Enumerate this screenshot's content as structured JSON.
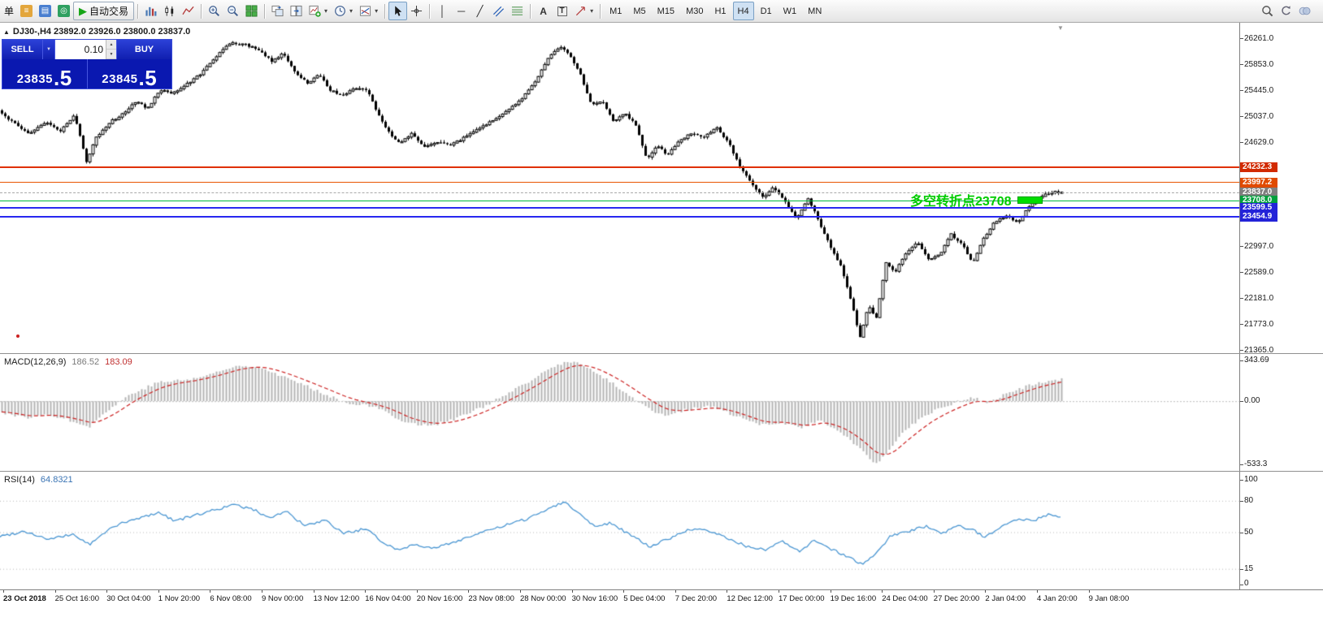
{
  "glyphs": {
    "dropdown": "▼",
    "spin_up": "▲",
    "spin_down": "▼",
    "symbol_marker": "▲",
    "shift_marker": "▼"
  },
  "toolbar": {
    "items": [
      {
        "type": "text",
        "name": "new-order-label",
        "text": "单"
      },
      {
        "type": "icon",
        "name": "metaeditor-icon",
        "box": "#e3a63c",
        "glyph": "≡"
      },
      {
        "type": "icon",
        "name": "data-window-icon",
        "box": "#4a7fd0",
        "glyph": "▤"
      },
      {
        "type": "icon",
        "name": "strategy-tester-icon",
        "box": "#2fa060",
        "glyph": "◎"
      },
      {
        "type": "icon",
        "name": "autotrading-button",
        "glyph": "▶",
        "glyph_color": "#17a517",
        "label": "自动交易",
        "framed": true
      },
      {
        "type": "sep"
      },
      {
        "type": "icon",
        "name": "bar-chart-icon",
        "svg": "bars"
      },
      {
        "type": "icon",
        "name": "candlestick-icon",
        "svg": "candles"
      },
      {
        "type": "icon",
        "name": "line-chart-icon",
        "svg": "linechart"
      },
      {
        "type": "sep"
      },
      {
        "type": "icon",
        "name": "zoom-in-icon",
        "svg": "zoomin"
      },
      {
        "type": "icon",
        "name": "zoom-out-icon",
        "svg": "zoomout"
      },
      {
        "type": "icon",
        "name": "tile-windows-icon",
        "svg": "tile"
      },
      {
        "type": "sep"
      },
      {
        "type": "icon",
        "name": "cascade-windows-icon",
        "svg": "cascade"
      },
      {
        "type": "icon",
        "name": "arrange-windows-icon",
        "svg": "cascade2"
      },
      {
        "type": "icon",
        "name": "new-chart-button",
        "svg": "newchart",
        "dropdown": true
      },
      {
        "type": "icon",
        "name": "profiles-button",
        "svg": "clock",
        "dropdown": true
      },
      {
        "type": "icon",
        "name": "templates-button",
        "svg": "template",
        "dropdown": true
      },
      {
        "type": "sep"
      },
      {
        "type": "icon",
        "name": "cursor-tool",
        "svg": "cursor",
        "pressed": true
      },
      {
        "type": "icon",
        "name": "crosshair-tool",
        "svg": "crosshair"
      },
      {
        "type": "sep"
      },
      {
        "type": "icon",
        "name": "vertical-line-tool",
        "glyph": "│"
      },
      {
        "type": "icon",
        "name": "horizontal-line-tool",
        "glyph": "─"
      },
      {
        "type": "icon",
        "name": "trendline-tool",
        "glyph": "╱"
      },
      {
        "type": "icon",
        "name": "channel-tool",
        "svg": "channel"
      },
      {
        "type": "icon",
        "name": "fibonacci-tool",
        "svg": "fib"
      },
      {
        "type": "sep"
      },
      {
        "type": "icon",
        "name": "text-tool",
        "glyph": "A",
        "bold": true
      },
      {
        "type": "icon",
        "name": "text-label-tool",
        "glyph": "T",
        "boxed": true
      },
      {
        "type": "icon",
        "name": "arrows-tool",
        "svg": "shapes",
        "dropdown": true
      },
      {
        "type": "sep"
      }
    ],
    "timeframes": {
      "labels": [
        "M1",
        "M5",
        "M15",
        "M30",
        "H1",
        "H4",
        "D1",
        "W1",
        "MN"
      ],
      "active": "H4"
    },
    "right_items": [
      {
        "name": "search-icon",
        "svg": "search"
      },
      {
        "name": "sync-icon",
        "svg": "sync"
      },
      {
        "name": "community-icon",
        "svg": "circles"
      }
    ]
  },
  "chart": {
    "title": "DJ30-,H4  23892.0 23926.0 23800.0 23837.0",
    "trade_panel": {
      "sell_label": "SELL",
      "buy_label": "BUY",
      "volume": "0.10",
      "sell_price": "23835.5",
      "buy_price": "23845.5",
      "sell_price_main": "23835",
      "sell_price_pip": ".5",
      "buy_price_main": "23845",
      "buy_price_pip": ".5"
    },
    "annotation": {
      "text": "多空转折点23708",
      "color": "#00cc00",
      "marker_color": "#00dd00"
    },
    "y_axis": {
      "price_min": 21365.0,
      "price_max": 26261.0,
      "ticks": [
        "26261.0",
        "25853.0",
        "25445.0",
        "25037.0",
        "24629.0",
        "22997.0",
        "22589.0",
        "22181.0",
        "21773.0",
        "21365.0"
      ]
    },
    "levels": [
      {
        "label": "24232.3",
        "price": 24232.3,
        "line_color": "#e03000",
        "tag_color": "#d22a00",
        "thickness": 2
      },
      {
        "label": "23997.2",
        "price": 23997.2,
        "line_color": "#e85500",
        "tag_color": "#e04a00",
        "thickness": 1
      },
      {
        "label": "23837.0",
        "price": 23837.0,
        "line_color": "#aaaaaa",
        "tag_color": "#7f7f7f",
        "thickness": 1,
        "style": "dashed",
        "role": "current-price"
      },
      {
        "label": "23708.0",
        "price": 23708.0,
        "line_color": "#00b43c",
        "tag_color": "#00a03c",
        "thickness": 1
      },
      {
        "label": "23599.5",
        "price": 23599.5,
        "line_color": "#2828f0",
        "tag_color": "#2323d8",
        "thickness": 2
      },
      {
        "label": "23454.9",
        "price": 23454.9,
        "line_color": "#2828f0",
        "tag_color": "#2323d8",
        "thickness": 2
      }
    ]
  },
  "indicators": {
    "macd": {
      "name": "MACD(12,26,9)",
      "value_main": "186.52",
      "value_signal": "183.09",
      "axis_labels": [
        "343.69",
        "0.00",
        "-533.3"
      ],
      "histogram_color": "#b4b4b4",
      "signal_color": "#cc2222"
    },
    "rsi": {
      "name": "RSI(14)",
      "value": "64.8321",
      "axis_labels": [
        "100",
        "80",
        "50",
        "15",
        "0"
      ],
      "line_color": "#4a96d2",
      "levels": [
        80,
        50,
        15
      ]
    }
  },
  "time_axis": {
    "labels": [
      "23 Oct 2018",
      "25 Oct 16:00",
      "30 Oct 04:00",
      "1 Nov 20:00",
      "6 Nov 08:00",
      "9 Nov 00:00",
      "13 Nov 12:00",
      "16 Nov 04:00",
      "20 Nov 16:00",
      "23 Nov 08:00",
      "28 Nov 00:00",
      "30 Nov 16:00",
      "5 Dec 04:00",
      "7 Dec 20:00",
      "12 Dec 12:00",
      "17 Dec 00:00",
      "19 Dec 16:00",
      "24 Dec 04:00",
      "27 Dec 20:00",
      "2 Jan 04:00",
      "4 Jan 20:00",
      "9 Jan 08:00"
    ]
  },
  "chart_data": [
    {
      "type": "candlestick",
      "symbol": "DJ30-",
      "period": "H4",
      "open": 23892.0,
      "high": 23926.0,
      "low": 23800.0,
      "close": 23837.0,
      "price_min": 21365.0,
      "price_max": 26261.0,
      "price_path": [
        [
          0,
          25150
        ],
        [
          15,
          24980
        ],
        [
          40,
          24760
        ],
        [
          60,
          24950
        ],
        [
          78,
          24800
        ],
        [
          95,
          25050
        ],
        [
          110,
          24330
        ],
        [
          122,
          24700
        ],
        [
          140,
          24950
        ],
        [
          158,
          25100
        ],
        [
          172,
          25290
        ],
        [
          185,
          25150
        ],
        [
          200,
          25450
        ],
        [
          215,
          25400
        ],
        [
          232,
          25520
        ],
        [
          250,
          25700
        ],
        [
          268,
          25960
        ],
        [
          288,
          26190
        ],
        [
          305,
          26160
        ],
        [
          322,
          26080
        ],
        [
          338,
          25900
        ],
        [
          352,
          26020
        ],
        [
          368,
          25700
        ],
        [
          382,
          25550
        ],
        [
          395,
          25700
        ],
        [
          410,
          25450
        ],
        [
          425,
          25350
        ],
        [
          440,
          25480
        ],
        [
          455,
          25450
        ],
        [
          468,
          25100
        ],
        [
          482,
          24780
        ],
        [
          495,
          24620
        ],
        [
          510,
          24760
        ],
        [
          525,
          24560
        ],
        [
          540,
          24620
        ],
        [
          558,
          24580
        ],
        [
          575,
          24700
        ],
        [
          592,
          24850
        ],
        [
          610,
          24960
        ],
        [
          628,
          25120
        ],
        [
          645,
          25300
        ],
        [
          662,
          25580
        ],
        [
          678,
          25950
        ],
        [
          692,
          26130
        ],
        [
          705,
          26000
        ],
        [
          718,
          25680
        ],
        [
          732,
          25200
        ],
        [
          745,
          25280
        ],
        [
          758,
          24950
        ],
        [
          772,
          25080
        ],
        [
          786,
          24900
        ],
        [
          800,
          24350
        ],
        [
          812,
          24580
        ],
        [
          825,
          24420
        ],
        [
          840,
          24650
        ],
        [
          855,
          24780
        ],
        [
          870,
          24700
        ],
        [
          885,
          24860
        ],
        [
          900,
          24620
        ],
        [
          915,
          24220
        ],
        [
          928,
          23980
        ],
        [
          942,
          23760
        ],
        [
          956,
          23920
        ],
        [
          970,
          23680
        ],
        [
          984,
          23420
        ],
        [
          998,
          23750
        ],
        [
          1010,
          23420
        ],
        [
          1024,
          23020
        ],
        [
          1038,
          22680
        ],
        [
          1050,
          22180
        ],
        [
          1062,
          21560
        ],
        [
          1072,
          22050
        ],
        [
          1082,
          21880
        ],
        [
          1094,
          22750
        ],
        [
          1105,
          22580
        ],
        [
          1118,
          22880
        ],
        [
          1132,
          23060
        ],
        [
          1146,
          22780
        ],
        [
          1160,
          22860
        ],
        [
          1174,
          23180
        ],
        [
          1188,
          23020
        ],
        [
          1200,
          22720
        ],
        [
          1214,
          23120
        ],
        [
          1228,
          23380
        ],
        [
          1242,
          23480
        ],
        [
          1256,
          23360
        ],
        [
          1270,
          23620
        ],
        [
          1284,
          23780
        ],
        [
          1300,
          23850
        ],
        [
          1306,
          23837
        ]
      ]
    },
    {
      "type": "bar",
      "name": "MACD(12,26,9)",
      "main": 186.52,
      "signal": 183.09,
      "max": 343.69,
      "min": -533.3,
      "path": [
        [
          0,
          -90
        ],
        [
          30,
          -140
        ],
        [
          60,
          -110
        ],
        [
          90,
          -170
        ],
        [
          110,
          -210
        ],
        [
          130,
          -90
        ],
        [
          160,
          60
        ],
        [
          195,
          160
        ],
        [
          235,
          185
        ],
        [
          265,
          240
        ],
        [
          290,
          295
        ],
        [
          315,
          300
        ],
        [
          335,
          245
        ],
        [
          365,
          160
        ],
        [
          400,
          60
        ],
        [
          425,
          -10
        ],
        [
          455,
          -40
        ],
        [
          475,
          -90
        ],
        [
          500,
          -185
        ],
        [
          530,
          -205
        ],
        [
          560,
          -150
        ],
        [
          590,
          -60
        ],
        [
          620,
          45
        ],
        [
          650,
          160
        ],
        [
          680,
          290
        ],
        [
          700,
          340
        ],
        [
          715,
          310
        ],
        [
          735,
          230
        ],
        [
          760,
          120
        ],
        [
          790,
          -30
        ],
        [
          815,
          -120
        ],
        [
          845,
          -70
        ],
        [
          875,
          -45
        ],
        [
          905,
          -125
        ],
        [
          935,
          -205
        ],
        [
          960,
          -175
        ],
        [
          985,
          -225
        ],
        [
          1010,
          -160
        ],
        [
          1040,
          -290
        ],
        [
          1062,
          -430
        ],
        [
          1075,
          -533
        ],
        [
          1090,
          -460
        ],
        [
          1110,
          -260
        ],
        [
          1140,
          -110
        ],
        [
          1168,
          -30
        ],
        [
          1195,
          35
        ],
        [
          1215,
          -15
        ],
        [
          1245,
          85
        ],
        [
          1275,
          150
        ],
        [
          1306,
          187
        ]
      ]
    },
    {
      "type": "line",
      "name": "RSI(14)",
      "value": 64.8321,
      "range": [
        0,
        100
      ],
      "levels": [
        80,
        50,
        15
      ],
      "path": [
        [
          0,
          46
        ],
        [
          30,
          51
        ],
        [
          60,
          43
        ],
        [
          90,
          48
        ],
        [
          110,
          38
        ],
        [
          140,
          56
        ],
        [
          170,
          63
        ],
        [
          195,
          69
        ],
        [
          215,
          61
        ],
        [
          240,
          66
        ],
        [
          262,
          71
        ],
        [
          288,
          76
        ],
        [
          310,
          72
        ],
        [
          332,
          64
        ],
        [
          352,
          70
        ],
        [
          375,
          56
        ],
        [
          400,
          61
        ],
        [
          422,
          49
        ],
        [
          450,
          53
        ],
        [
          470,
          41
        ],
        [
          490,
          33
        ],
        [
          512,
          39
        ],
        [
          532,
          34
        ],
        [
          560,
          41
        ],
        [
          590,
          49
        ],
        [
          620,
          56
        ],
        [
          650,
          63
        ],
        [
          678,
          74
        ],
        [
          695,
          79
        ],
        [
          712,
          68
        ],
        [
          732,
          56
        ],
        [
          752,
          59
        ],
        [
          772,
          49
        ],
        [
          800,
          36
        ],
        [
          820,
          43
        ],
        [
          850,
          53
        ],
        [
          872,
          51
        ],
        [
          900,
          43
        ],
        [
          920,
          36
        ],
        [
          942,
          33
        ],
        [
          962,
          41
        ],
        [
          985,
          31
        ],
        [
          1002,
          43
        ],
        [
          1025,
          33
        ],
        [
          1045,
          26
        ],
        [
          1062,
          19
        ],
        [
          1080,
          31
        ],
        [
          1095,
          46
        ],
        [
          1120,
          51
        ],
        [
          1140,
          56
        ],
        [
          1160,
          49
        ],
        [
          1180,
          56
        ],
        [
          1200,
          51
        ],
        [
          1212,
          45
        ],
        [
          1232,
          56
        ],
        [
          1252,
          63
        ],
        [
          1272,
          61
        ],
        [
          1290,
          67
        ],
        [
          1306,
          64.8
        ]
      ]
    }
  ]
}
